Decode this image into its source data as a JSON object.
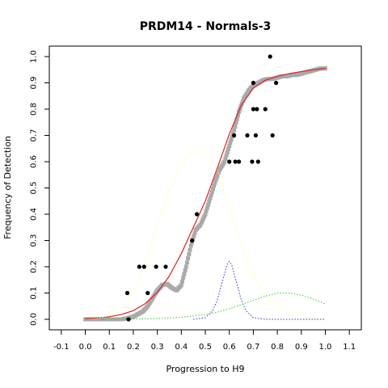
{
  "chart_data": {
    "type": "scatter",
    "title": "PRDM14 - Normals-3",
    "xlabel": "Progression to H9",
    "ylabel": "Frequency of Detection",
    "xlim": [
      -0.15,
      1.15
    ],
    "ylim": [
      -0.04,
      1.04
    ],
    "xticks": [
      -0.1,
      0.0,
      0.1,
      0.2,
      0.3,
      0.4,
      0.5,
      0.6,
      0.7,
      0.8,
      0.9,
      1.0,
      1.1
    ],
    "xtick_labels": [
      "-0.1",
      "0.0",
      "0.1",
      "0.2",
      "0.3",
      "0.4",
      "0.5",
      "0.6",
      "0.7",
      "0.8",
      "0.9",
      "1.0",
      "1.1"
    ],
    "yticks": [
      0.0,
      0.1,
      0.2,
      0.3,
      0.4,
      0.5,
      0.6,
      0.7,
      0.8,
      0.9,
      1.0
    ],
    "ytick_labels": [
      "0.0",
      "0.1",
      "0.2",
      "0.3",
      "0.4",
      "0.5",
      "0.6",
      "0.7",
      "0.8",
      "0.9",
      "1.0"
    ],
    "grid": false,
    "series": [
      {
        "kind": "points",
        "color": "#000000",
        "points": [
          [
            0.175,
            0.1
          ],
          [
            0.18,
            0.0
          ],
          [
            0.225,
            0.2
          ],
          [
            0.245,
            0.2
          ],
          [
            0.26,
            0.1
          ],
          [
            0.295,
            0.2
          ],
          [
            0.335,
            0.2
          ],
          [
            0.445,
            0.3
          ],
          [
            0.465,
            0.4
          ],
          [
            0.6,
            0.6
          ],
          [
            0.62,
            0.7
          ],
          [
            0.625,
            0.6
          ],
          [
            0.64,
            0.6
          ],
          [
            0.675,
            0.7
          ],
          [
            0.695,
            0.6
          ],
          [
            0.7,
            0.8
          ],
          [
            0.7,
            0.9
          ],
          [
            0.71,
            0.7
          ],
          [
            0.715,
            0.8
          ],
          [
            0.72,
            0.6
          ],
          [
            0.75,
            0.8
          ],
          [
            0.77,
            1.0
          ],
          [
            0.78,
            0.7
          ],
          [
            0.795,
            0.9
          ]
        ]
      },
      {
        "kind": "smoothed",
        "color": "#aaaaaa",
        "x": [
          0.0,
          0.05,
          0.1,
          0.15,
          0.18,
          0.2,
          0.22,
          0.24,
          0.26,
          0.28,
          0.3,
          0.32,
          0.34,
          0.36,
          0.38,
          0.4,
          0.42,
          0.44,
          0.46,
          0.48,
          0.5,
          0.52,
          0.54,
          0.56,
          0.58,
          0.6,
          0.62,
          0.64,
          0.66,
          0.68,
          0.7,
          0.72,
          0.74,
          0.76,
          0.78,
          0.8,
          0.82,
          0.84,
          0.86,
          0.88,
          0.9,
          0.92,
          0.94,
          0.96,
          0.98,
          1.0
        ],
        "y": [
          0.0,
          0.0,
          0.0,
          0.0,
          0.005,
          0.01,
          0.02,
          0.03,
          0.05,
          0.08,
          0.11,
          0.13,
          0.135,
          0.12,
          0.11,
          0.13,
          0.2,
          0.28,
          0.34,
          0.36,
          0.4,
          0.46,
          0.52,
          0.57,
          0.6,
          0.66,
          0.72,
          0.79,
          0.84,
          0.87,
          0.89,
          0.9,
          0.91,
          0.915,
          0.915,
          0.92,
          0.925,
          0.925,
          0.93,
          0.93,
          0.935,
          0.94,
          0.945,
          0.95,
          0.955,
          0.955
        ]
      },
      {
        "kind": "curve",
        "style": "solid",
        "color": "#dd2222",
        "x": [
          0.0,
          0.05,
          0.1,
          0.15,
          0.2,
          0.25,
          0.3,
          0.35,
          0.4,
          0.45,
          0.5,
          0.55,
          0.6,
          0.65,
          0.7,
          0.75,
          0.8,
          0.85,
          0.9,
          0.95,
          1.0
        ],
        "y": [
          0.003,
          0.005,
          0.01,
          0.018,
          0.033,
          0.06,
          0.102,
          0.165,
          0.25,
          0.35,
          0.45,
          0.575,
          0.705,
          0.815,
          0.88,
          0.91,
          0.925,
          0.935,
          0.943,
          0.95,
          0.955
        ]
      },
      {
        "kind": "curve",
        "style": "dotted",
        "color": "#ffff99",
        "x": [
          0.0,
          0.05,
          0.1,
          0.15,
          0.2,
          0.25,
          0.3,
          0.35,
          0.4,
          0.45,
          0.47,
          0.5,
          0.55,
          0.6,
          0.65,
          0.7,
          0.75,
          0.8,
          0.85,
          0.9,
          0.95,
          1.0
        ],
        "y": [
          0.0,
          0.003,
          0.013,
          0.042,
          0.107,
          0.219,
          0.363,
          0.493,
          0.596,
          0.646,
          0.65,
          0.637,
          0.571,
          0.426,
          0.285,
          0.17,
          0.09,
          0.042,
          0.017,
          0.006,
          0.002,
          0.0
        ]
      },
      {
        "kind": "curve",
        "style": "dotted",
        "color": "#3333cc",
        "x": [
          0.45,
          0.5,
          0.53,
          0.55,
          0.57,
          0.59,
          0.6,
          0.61,
          0.63,
          0.65,
          0.67,
          0.7,
          0.75,
          0.8,
          0.9,
          1.0
        ],
        "y": [
          0.0,
          0.006,
          0.032,
          0.073,
          0.141,
          0.207,
          0.22,
          0.207,
          0.141,
          0.073,
          0.032,
          0.006,
          0.0,
          0.0,
          0.0,
          0.0
        ]
      },
      {
        "kind": "curve",
        "style": "dotted",
        "color": "#33cc33",
        "x": [
          0.0,
          0.1,
          0.2,
          0.3,
          0.4,
          0.5,
          0.55,
          0.6,
          0.65,
          0.7,
          0.75,
          0.8,
          0.85,
          0.9,
          0.95,
          1.0
        ],
        "y": [
          0.0,
          0.0,
          0.001,
          0.003,
          0.008,
          0.018,
          0.027,
          0.04,
          0.056,
          0.072,
          0.088,
          0.1,
          0.1,
          0.092,
          0.077,
          0.058
        ]
      }
    ]
  }
}
